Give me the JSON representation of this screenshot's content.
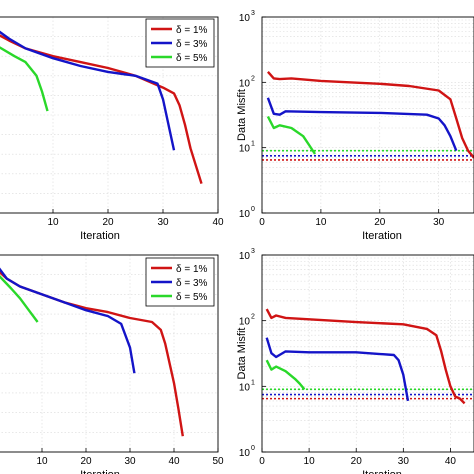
{
  "chart_data": [
    {
      "type": "line",
      "panel": "top-left",
      "xlabel": "Iteration",
      "ylabel": "",
      "xlim": [
        0,
        40
      ],
      "xticks": [
        "10",
        "20",
        "30",
        "40"
      ],
      "grid": true,
      "legend": "top-right",
      "series": [
        {
          "name": "δ = 1%",
          "color": "#d01414",
          "x": [
            0,
            2,
            5,
            10,
            15,
            20,
            25,
            30,
            32,
            33,
            34,
            35,
            37
          ],
          "y": [
            0.91,
            0.88,
            0.84,
            0.8,
            0.77,
            0.74,
            0.7,
            0.64,
            0.61,
            0.55,
            0.45,
            0.33,
            0.15
          ]
        },
        {
          "name": "δ = 3%",
          "color": "#1414c8",
          "x": [
            0,
            2,
            5,
            10,
            15,
            20,
            25,
            29,
            30,
            31,
            32
          ],
          "y": [
            0.93,
            0.89,
            0.84,
            0.79,
            0.75,
            0.72,
            0.7,
            0.66,
            0.58,
            0.45,
            0.32
          ]
        },
        {
          "name": "δ = 5%",
          "color": "#2ad82a",
          "x": [
            0,
            3,
            5,
            7,
            8,
            9
          ],
          "y": [
            0.85,
            0.8,
            0.77,
            0.7,
            0.62,
            0.52
          ]
        }
      ]
    },
    {
      "type": "line",
      "panel": "top-right",
      "xlabel": "Iteration",
      "ylabel": "Data Misfit",
      "xlim": [
        0,
        36
      ],
      "ylim": [
        1,
        1000
      ],
      "yscale": "log",
      "xticks": [
        "0",
        "10",
        "20",
        "30"
      ],
      "grid": true,
      "series": [
        {
          "name": "δ = 1%",
          "color": "#d01414",
          "x": [
            1,
            2,
            3,
            5,
            10,
            20,
            25,
            30,
            32,
            33,
            34,
            35,
            36
          ],
          "y": [
            145,
            115,
            112,
            115,
            105,
            95,
            88,
            75,
            55,
            28,
            14,
            9,
            7
          ]
        },
        {
          "name": "δ = 3%",
          "color": "#1414c8",
          "x": [
            1,
            2,
            3,
            4,
            10,
            20,
            28,
            30,
            31,
            32,
            33
          ],
          "y": [
            58,
            33,
            32,
            36,
            35,
            34,
            32,
            28,
            22,
            15,
            9
          ]
        },
        {
          "name": "δ = 5%",
          "color": "#2ad82a",
          "x": [
            1,
            2,
            3,
            5,
            7,
            8,
            9
          ],
          "y": [
            30,
            20,
            22,
            20,
            15,
            11,
            8
          ]
        }
      ],
      "reference_lines": [
        {
          "color": "#2ad82a",
          "y": 9
        },
        {
          "color": "#1414c8",
          "y": 7.5
        },
        {
          "color": "#d01414",
          "y": 6.5
        }
      ]
    },
    {
      "type": "line",
      "panel": "bottom-left",
      "xlabel": "Iteration",
      "ylabel": "",
      "xlim": [
        0,
        50
      ],
      "xticks": [
        "10",
        "20",
        "30",
        "40",
        "50"
      ],
      "grid": true,
      "legend": "top-right",
      "series": [
        {
          "name": "δ = 1%",
          "color": "#d01414",
          "x": [
            0,
            2,
            5,
            10,
            15,
            20,
            25,
            30,
            35,
            37,
            38,
            39,
            40,
            41,
            42
          ],
          "y": [
            0.92,
            0.88,
            0.84,
            0.8,
            0.76,
            0.73,
            0.71,
            0.68,
            0.66,
            0.62,
            0.55,
            0.45,
            0.35,
            0.22,
            0.08
          ]
        },
        {
          "name": "δ = 3%",
          "color": "#1414c8",
          "x": [
            0,
            2,
            5,
            10,
            15,
            20,
            25,
            28,
            30,
            31
          ],
          "y": [
            0.94,
            0.88,
            0.84,
            0.8,
            0.76,
            0.72,
            0.69,
            0.65,
            0.53,
            0.4
          ]
        },
        {
          "name": "δ = 5%",
          "color": "#2ad82a",
          "x": [
            0,
            3,
            5,
            7,
            9
          ],
          "y": [
            0.9,
            0.83,
            0.78,
            0.72,
            0.66
          ]
        }
      ]
    },
    {
      "type": "line",
      "panel": "bottom-right",
      "xlabel": "Iteration",
      "ylabel": "Data Misfit",
      "xlim": [
        0,
        45
      ],
      "ylim": [
        1,
        1000
      ],
      "yscale": "log",
      "xticks": [
        "0",
        "10",
        "20",
        "30",
        "40"
      ],
      "grid": true,
      "series": [
        {
          "name": "δ = 1%",
          "color": "#d01414",
          "x": [
            1,
            2,
            3,
            5,
            10,
            20,
            30,
            35,
            37,
            38,
            39,
            40,
            41,
            42,
            43
          ],
          "y": [
            150,
            110,
            120,
            110,
            105,
            95,
            88,
            75,
            60,
            35,
            18,
            10,
            7,
            6.5,
            5.5
          ]
        },
        {
          "name": "δ = 3%",
          "color": "#1414c8",
          "x": [
            1,
            2,
            3,
            5,
            10,
            20,
            28,
            29,
            30,
            31
          ],
          "y": [
            55,
            32,
            28,
            34,
            33,
            33,
            30,
            25,
            15,
            6
          ]
        },
        {
          "name": "δ = 5%",
          "color": "#2ad82a",
          "x": [
            1,
            2,
            3,
            5,
            7,
            8,
            9
          ],
          "y": [
            25,
            18,
            20,
            17,
            13,
            11,
            9
          ]
        }
      ],
      "reference_lines": [
        {
          "color": "#2ad82a",
          "y": 9
        },
        {
          "color": "#1414c8",
          "y": 7.5
        },
        {
          "color": "#d01414",
          "y": 6.5
        }
      ]
    }
  ]
}
